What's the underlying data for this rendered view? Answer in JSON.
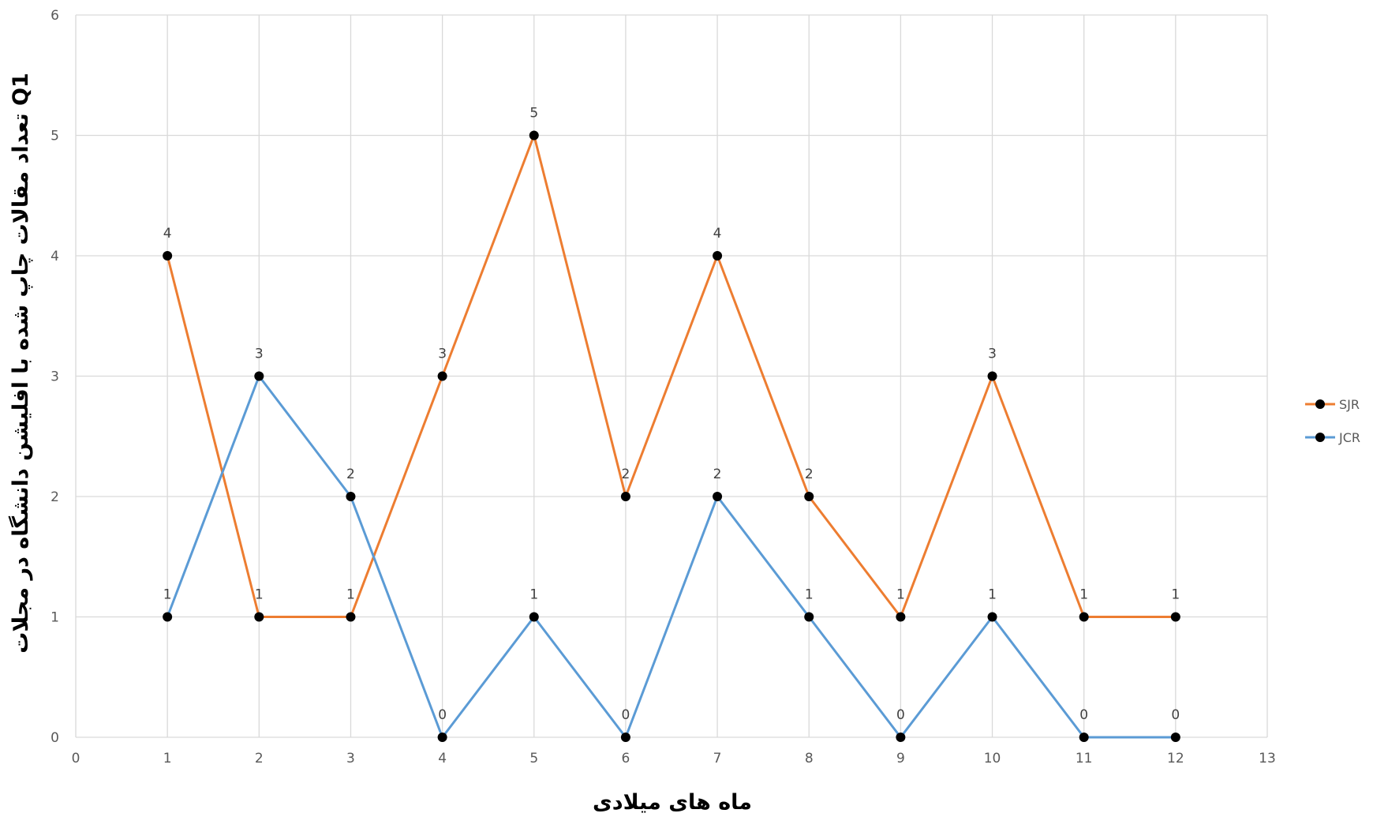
{
  "chart_data": {
    "type": "line",
    "xlabel": "ماه های میلادی",
    "ylabel": "تعداد مقالات چاپ شده با افلیشن دانشگاه در مجلات Q1",
    "xlim": [
      0,
      13
    ],
    "ylim": [
      0,
      6
    ],
    "xticks": [
      0,
      1,
      2,
      3,
      4,
      5,
      6,
      7,
      8,
      9,
      10,
      11,
      12,
      13
    ],
    "yticks": [
      0,
      1,
      2,
      3,
      4,
      5,
      6
    ],
    "grid": true,
    "legend_position": "right",
    "x": [
      1,
      2,
      3,
      4,
      5,
      6,
      7,
      8,
      9,
      10,
      11,
      12
    ],
    "series": [
      {
        "name": "SJR",
        "color": "#ED7D31",
        "values": [
          4,
          1,
          1,
          3,
          5,
          2,
          4,
          2,
          1,
          3,
          1,
          1
        ]
      },
      {
        "name": "JCR",
        "color": "#5B9BD5",
        "values": [
          1,
          3,
          2,
          0,
          1,
          0,
          2,
          1,
          0,
          1,
          0,
          0
        ]
      }
    ],
    "data_labels": true
  }
}
